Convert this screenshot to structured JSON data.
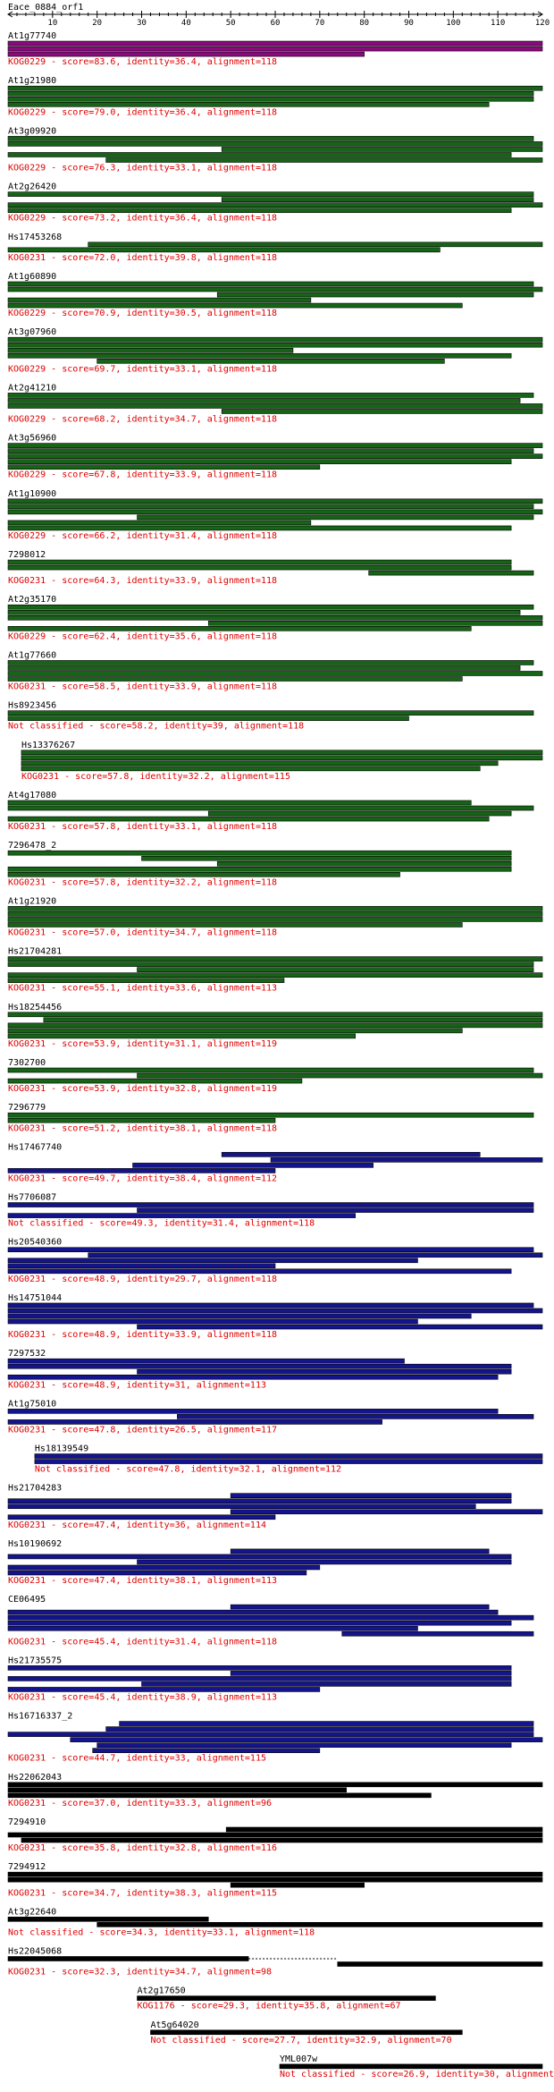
{
  "query": {
    "name": "Eace_0884_orf1",
    "length": 120
  },
  "axis": {
    "min": 0,
    "max": 120,
    "labels": [
      10,
      20,
      30,
      40,
      50,
      60,
      70,
      80,
      90,
      100,
      110,
      120
    ],
    "minor_step": 2
  },
  "colors": {
    "magenta": "#8a0a7e",
    "green": "#176317",
    "blue": "#14148c",
    "black": "#000000",
    "annotation": "#e00000",
    "text": "#000000"
  },
  "hits": [
    {
      "name": "At1g77740",
      "annotation": "KOG0229 - score=83.6, identity=36.4, alignment=118",
      "color": "magenta",
      "bars": [
        [
          0,
          120
        ],
        [
          0,
          120
        ],
        [
          0,
          80
        ]
      ]
    },
    {
      "name": "At1g21980",
      "annotation": "KOG0229 - score=79.0, identity=36.4, alignment=118",
      "color": "green",
      "bars": [
        [
          0,
          120
        ],
        [
          0,
          118
        ],
        [
          0,
          118
        ],
        [
          0,
          108
        ]
      ]
    },
    {
      "name": "At3g09920",
      "annotation": "KOG0229 - score=76.3, identity=33.1, alignment=118",
      "color": "green",
      "bars": [
        [
          0,
          118
        ],
        [
          0,
          120
        ],
        [
          48,
          120
        ],
        [
          0,
          113
        ],
        [
          22,
          120
        ]
      ]
    },
    {
      "name": "At2g26420",
      "annotation": "KOG0229 - score=73.2, identity=36.4, alignment=118",
      "color": "green",
      "bars": [
        [
          0,
          118
        ],
        [
          48,
          118
        ],
        [
          0,
          120
        ],
        [
          0,
          113
        ]
      ]
    },
    {
      "name": "Hs17453268",
      "annotation": "KOG0231 - score=72.0, identity=39.8, alignment=118",
      "color": "green",
      "bars": [
        [
          18,
          120
        ],
        [
          0,
          97
        ]
      ]
    },
    {
      "name": "At1g60890",
      "annotation": "KOG0229 - score=70.9, identity=30.5, alignment=118",
      "color": "green",
      "bars": [
        [
          0,
          118
        ],
        [
          0,
          120
        ],
        [
          47,
          118
        ],
        [
          0,
          68
        ],
        [
          0,
          102
        ]
      ]
    },
    {
      "name": "At3g07960",
      "annotation": "KOG0229 - score=69.7, identity=33.1, alignment=118",
      "color": "green",
      "bars": [
        [
          0,
          120
        ],
        [
          0,
          120
        ],
        [
          0,
          64
        ],
        [
          0,
          113
        ],
        [
          20,
          98
        ]
      ]
    },
    {
      "name": "At2g41210",
      "annotation": "KOG0229 - score=68.2, identity=34.7, alignment=118",
      "color": "green",
      "bars": [
        [
          0,
          118
        ],
        [
          0,
          115
        ],
        [
          0,
          120
        ],
        [
          48,
          120
        ]
      ]
    },
    {
      "name": "At3g56960",
      "annotation": "KOG0229 - score=67.8, identity=33.9, alignment=118",
      "color": "green",
      "bars": [
        [
          0,
          120
        ],
        [
          0,
          118
        ],
        [
          0,
          120
        ],
        [
          0,
          113
        ],
        [
          0,
          70
        ]
      ]
    },
    {
      "name": "At1g10900",
      "annotation": "KOG0229 - score=66.2, identity=31.4, alignment=118",
      "color": "green",
      "bars": [
        [
          0,
          120
        ],
        [
          0,
          118
        ],
        [
          0,
          120
        ],
        [
          29,
          118
        ],
        [
          0,
          68
        ],
        [
          0,
          113
        ]
      ]
    },
    {
      "name": "7298012",
      "annotation": "KOG0231 - score=64.3, identity=33.9, alignment=118",
      "color": "green",
      "bars": [
        [
          0,
          113
        ],
        [
          0,
          113
        ],
        [
          81,
          118
        ]
      ]
    },
    {
      "name": "At2g35170",
      "annotation": "KOG0229 - score=62.4, identity=35.6, alignment=118",
      "color": "green",
      "bars": [
        [
          0,
          118
        ],
        [
          0,
          115
        ],
        [
          0,
          120
        ],
        [
          45,
          120
        ],
        [
          0,
          104
        ]
      ]
    },
    {
      "name": "At1g77660",
      "annotation": "KOG0231 - score=58.5, identity=33.9, alignment=118",
      "color": "green",
      "bars": [
        [
          0,
          118
        ],
        [
          0,
          115
        ],
        [
          0,
          120
        ],
        [
          0,
          102
        ]
      ]
    },
    {
      "name": "Hs8923456",
      "annotation": "Not classified - score=58.2, identity=39, alignment=118",
      "color": "green",
      "bars": [
        [
          0,
          118
        ],
        [
          0,
          90
        ]
      ]
    },
    {
      "name": "Hs13376267",
      "annotation": "KOG0231 - score=57.8, identity=32.2, alignment=115",
      "color": "green",
      "bars": [
        [
          3,
          120
        ],
        [
          3,
          120
        ],
        [
          3,
          110
        ],
        [
          3,
          106
        ]
      ]
    },
    {
      "name": "At4g17080",
      "annotation": "KOG0231 - score=57.8, identity=33.1, alignment=118",
      "color": "green",
      "bars": [
        [
          0,
          104
        ],
        [
          0,
          118
        ],
        [
          45,
          113
        ],
        [
          0,
          108
        ]
      ]
    },
    {
      "name": "7296478_2",
      "annotation": "KOG0231 - score=57.8, identity=32.2, alignment=118",
      "color": "green",
      "bars": [
        [
          0,
          113
        ],
        [
          30,
          113
        ],
        [
          47,
          113
        ],
        [
          0,
          113
        ],
        [
          0,
          88
        ]
      ]
    },
    {
      "name": "At1g21920",
      "annotation": "KOG0231 - score=57.0, identity=34.7, alignment=118",
      "color": "green",
      "bars": [
        [
          0,
          120
        ],
        [
          0,
          120
        ],
        [
          0,
          120
        ],
        [
          0,
          102
        ]
      ]
    },
    {
      "name": "Hs21704281",
      "annotation": "KOG0231 - score=55.1, identity=33.6, alignment=113",
      "color": "green",
      "bars": [
        [
          0,
          120
        ],
        [
          0,
          118
        ],
        [
          29,
          118
        ],
        [
          0,
          120
        ],
        [
          0,
          62
        ]
      ]
    },
    {
      "name": "Hs18254456",
      "annotation": "KOG0231 - score=53.9, identity=31.1, alignment=119",
      "color": "green",
      "bars": [
        [
          0,
          120
        ],
        [
          8,
          120
        ],
        [
          0,
          120
        ],
        [
          0,
          102
        ],
        [
          0,
          78
        ]
      ]
    },
    {
      "name": "7302700",
      "annotation": "KOG0231 - score=53.9, identity=32.8, alignment=119",
      "color": "green",
      "bars": [
        [
          0,
          118
        ],
        [
          29,
          120
        ],
        [
          0,
          66
        ]
      ]
    },
    {
      "name": "7296779",
      "annotation": "KOG0231 - score=51.2, identity=38.1, alignment=118",
      "color": "green",
      "bars": [
        [
          0,
          118
        ],
        [
          0,
          60
        ]
      ]
    },
    {
      "name": "Hs17467740",
      "annotation": "KOG0231 - score=49.7, identity=38.4, alignment=112",
      "color": "blue",
      "bars": [
        [
          48,
          106
        ],
        [
          59,
          120
        ],
        [
          28,
          82
        ],
        [
          0,
          60
        ]
      ]
    },
    {
      "name": "Hs7706087",
      "annotation": "Not classified - score=49.3, identity=31.4, alignment=118",
      "color": "blue",
      "bars": [
        [
          0,
          118
        ],
        [
          29,
          118
        ],
        [
          0,
          78
        ]
      ]
    },
    {
      "name": "Hs20540360",
      "annotation": "KOG0231 - score=48.9, identity=29.7, alignment=118",
      "color": "blue",
      "bars": [
        [
          0,
          118
        ],
        [
          18,
          120
        ],
        [
          0,
          92
        ],
        [
          0,
          60
        ],
        [
          0,
          113
        ]
      ]
    },
    {
      "name": "Hs14751044",
      "annotation": "KOG0231 - score=48.9, identity=33.9, alignment=118",
      "color": "blue",
      "bars": [
        [
          0,
          118
        ],
        [
          0,
          120
        ],
        [
          0,
          104
        ],
        [
          0,
          92
        ],
        [
          29,
          120
        ]
      ]
    },
    {
      "name": "7297532",
      "annotation": "KOG0231 - score=48.9, identity=31, alignment=113",
      "color": "blue",
      "bars": [
        [
          0,
          89
        ],
        [
          0,
          113
        ],
        [
          29,
          113
        ],
        [
          0,
          110
        ]
      ]
    },
    {
      "name": "At1g75010",
      "annotation": "KOG0231 - score=47.8, identity=26.5, alignment=117",
      "color": "blue",
      "bars": [
        [
          0,
          110
        ],
        [
          38,
          118
        ],
        [
          0,
          84
        ]
      ]
    },
    {
      "name": "Hs18139549",
      "annotation": "Not classified - score=47.8, identity=32.1, alignment=112",
      "color": "blue",
      "bars": [
        [
          6,
          120
        ],
        [
          6,
          120
        ]
      ]
    },
    {
      "name": "Hs21704283",
      "annotation": "KOG0231 - score=47.4, identity=36, alignment=114",
      "color": "blue",
      "bars": [
        [
          50,
          113
        ],
        [
          0,
          113
        ],
        [
          0,
          105
        ],
        [
          50,
          120
        ],
        [
          0,
          60
        ]
      ]
    },
    {
      "name": "Hs10190692",
      "annotation": "KOG0231 - score=47.4, identity=38.1, alignment=113",
      "color": "blue",
      "bars": [
        [
          50,
          108
        ],
        [
          0,
          113
        ],
        [
          29,
          113
        ],
        [
          0,
          70
        ],
        [
          0,
          67
        ]
      ]
    },
    {
      "name": "CE06495",
      "annotation": "KOG0231 - score=45.4, identity=31.4, alignment=118",
      "color": "blue",
      "bars": [
        [
          50,
          108
        ],
        [
          0,
          110
        ],
        [
          0,
          118
        ],
        [
          0,
          113
        ],
        [
          0,
          92
        ],
        [
          75,
          118
        ]
      ]
    },
    {
      "name": "Hs21735575",
      "annotation": "KOG0231 - score=45.4, identity=38.9, alignment=113",
      "color": "blue",
      "bars": [
        [
          0,
          113
        ],
        [
          50,
          113
        ],
        [
          0,
          113
        ],
        [
          30,
          113
        ],
        [
          0,
          70
        ]
      ]
    },
    {
      "name": "Hs16716337_2",
      "annotation": "KOG0231 - score=44.7, identity=33, alignment=115",
      "color": "blue",
      "bars": [
        [
          25,
          118
        ],
        [
          22,
          118
        ],
        [
          0,
          118
        ],
        [
          14,
          120
        ],
        [
          20,
          113
        ],
        [
          19,
          70
        ]
      ]
    },
    {
      "name": "Hs22062043",
      "annotation": "KOG0231 - score=37.0, identity=33.3, alignment=96",
      "color": "black",
      "bars": [
        [
          0,
          120
        ],
        [
          0,
          76
        ],
        [
          0,
          95
        ]
      ]
    },
    {
      "name": "7294910",
      "annotation": "KOG0231 - score=35.8, identity=32.8, alignment=116",
      "color": "black",
      "bars": [
        [
          49,
          120
        ],
        [
          0,
          120
        ],
        [
          3,
          120
        ]
      ]
    },
    {
      "name": "7294912",
      "annotation": "KOG0231 - score=34.7, identity=38.3, alignment=115",
      "color": "black",
      "bars": [
        [
          0,
          120
        ],
        [
          0,
          120
        ],
        [
          50,
          80
        ]
      ]
    },
    {
      "name": "At3g22640",
      "annotation": "Not classified - score=34.3, identity=33.1, alignment=118",
      "color": "black",
      "bars": [
        [
          0,
          45
        ],
        [
          20,
          120
        ]
      ]
    },
    {
      "name": "Hs22045068",
      "annotation": "KOG0231 - score=32.3, identity=34.7, alignment=98",
      "color": "black",
      "bars": [
        [
          0,
          54
        ],
        [
          74,
          120
        ]
      ],
      "dashed": [
        [
          54,
          74
        ]
      ]
    },
    {
      "name": "At2g17650",
      "annotation": "KOG1176 - score=29.3, identity=35.8, alignment=67",
      "color": "black",
      "bars": [
        [
          29,
          96
        ]
      ]
    },
    {
      "name": "At5g64020",
      "annotation": "Not classified - score=27.7, identity=32.9, alignment=70",
      "color": "black",
      "bars": [
        [
          32,
          102
        ]
      ]
    },
    {
      "name": "YML007w",
      "annotation": "Not classified - score=26.9, identity=30, alignment=118",
      "color": "black",
      "bars": [
        [
          61,
          120
        ]
      ]
    }
  ]
}
